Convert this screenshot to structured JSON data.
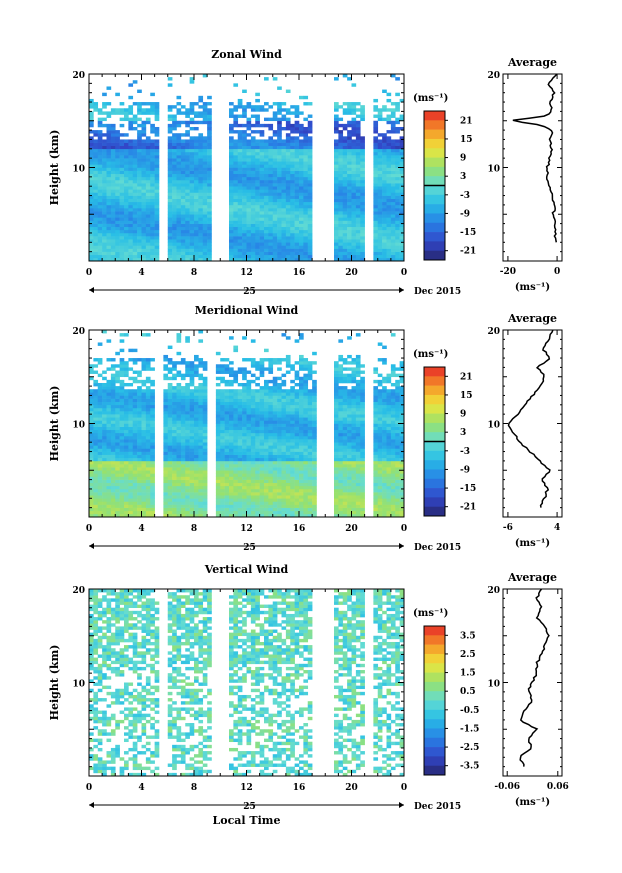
{
  "chart_data": [
    {
      "type": "heatmap",
      "title": "Zonal Wind",
      "ylabel": "Height (km)",
      "ylim": [
        0,
        20
      ],
      "yticks": [
        "20",
        "10"
      ],
      "xlim": [
        0,
        24
      ],
      "xticks": [
        "0",
        "4",
        "8",
        "12",
        "16",
        "20",
        "0"
      ],
      "date_label": "25",
      "month_label": "Dec 2015",
      "colorbar": {
        "unit": "(ms⁻¹)",
        "labels": [
          "21",
          "15",
          "9",
          "3",
          "-3",
          "-9",
          "-15",
          "-21"
        ],
        "range": [
          -24,
          24
        ],
        "contour_at": 0
      },
      "data_gaps_local_time": [
        [
          5.5,
          6.0
        ],
        [
          9.5,
          10.5
        ],
        [
          17.0,
          18.5
        ],
        [
          21.0,
          21.5
        ]
      ],
      "profile": {
        "title": "Average",
        "xticks": [
          "-20",
          "0"
        ],
        "xlim": [
          -22,
          2
        ],
        "unit": "(ms⁻¹)",
        "yticks": [
          "20",
          "10"
        ],
        "height_km": [
          2,
          3,
          4,
          5,
          6,
          7,
          8,
          9,
          10,
          11,
          12,
          13,
          14,
          14.5,
          15,
          15.5,
          16,
          17,
          18,
          19,
          20
        ],
        "values": [
          0,
          -1,
          -0.5,
          -1.5,
          -1,
          -2,
          -3,
          -4,
          -4,
          -3,
          -2,
          -3,
          -2,
          -6,
          -19,
          -5,
          -2,
          -3,
          -1,
          -4,
          0
        ]
      }
    },
    {
      "type": "heatmap",
      "title": "Meridional Wind",
      "ylabel": "Height (km)",
      "ylim": [
        0,
        20
      ],
      "yticks": [
        "20",
        "10"
      ],
      "xlim": [
        0,
        24
      ],
      "xticks": [
        "0",
        "4",
        "8",
        "12",
        "16",
        "20",
        "0"
      ],
      "date_label": "25",
      "month_label": "Dec 2015",
      "colorbar": {
        "unit": "(ms⁻¹)",
        "labels": [
          "21",
          "15",
          "9",
          "3",
          "-3",
          "-9",
          "-15",
          "-21"
        ],
        "range": [
          -24,
          24
        ],
        "contour_at": 0
      },
      "data_gaps_local_time": [
        [
          5.0,
          5.5
        ],
        [
          9.0,
          9.5
        ],
        [
          17.5,
          18.5
        ],
        [
          21.0,
          21.5
        ]
      ],
      "profile": {
        "title": "Average",
        "xticks": [
          "-6",
          "4"
        ],
        "xlim": [
          -7,
          5
        ],
        "unit": "(ms⁻¹)",
        "yticks": [
          "20",
          "10"
        ],
        "height_km": [
          1,
          2,
          3,
          4,
          5,
          6,
          7,
          8,
          9,
          10,
          11,
          12,
          13,
          14,
          15,
          16,
          17,
          18,
          19,
          20
        ],
        "values": [
          0.5,
          1.5,
          2.0,
          1.0,
          2.5,
          0.5,
          -1.5,
          -3.5,
          -5.0,
          -6.0,
          -4.0,
          -2.5,
          -1.0,
          0.5,
          1.5,
          0,
          2.5,
          1.0,
          2.5,
          3.0
        ]
      }
    },
    {
      "type": "heatmap",
      "title": "Vertical Wind",
      "ylabel": "Height (km)",
      "ylim": [
        0,
        20
      ],
      "yticks": [
        "20",
        "10"
      ],
      "xlim": [
        0,
        24
      ],
      "xticks": [
        "0",
        "4",
        "8",
        "12",
        "16",
        "20",
        "0"
      ],
      "date_label": "25",
      "month_label": "Dec 2015",
      "xlabel": "Local Time",
      "colorbar": {
        "unit": "(ms⁻¹)",
        "labels": [
          "3.5",
          "2.5",
          "1.5",
          "0.5",
          "-0.5",
          "-1.5",
          "-2.5",
          "-3.5"
        ],
        "range": [
          -4,
          4
        ]
      },
      "data_gaps_local_time": [
        [
          5.5,
          6.0
        ],
        [
          9.5,
          10.5
        ],
        [
          17.0,
          18.5
        ],
        [
          21.0,
          21.5
        ]
      ],
      "profile": {
        "title": "Average",
        "xticks": [
          "-0.06",
          "0.06"
        ],
        "xlim": [
          -0.07,
          0.07
        ],
        "unit": "(ms⁻¹)",
        "yticks": [
          "20",
          "10"
        ],
        "height_km": [
          1,
          2,
          3,
          4,
          5,
          6,
          7,
          8,
          9,
          10,
          11,
          12,
          13,
          14,
          15,
          16,
          17,
          18,
          19,
          20
        ],
        "values": [
          -0.02,
          -0.03,
          0.0,
          -0.01,
          0.01,
          -0.03,
          -0.02,
          0.0,
          -0.01,
          0.0,
          0.01,
          0.01,
          0.02,
          0.03,
          0.04,
          0.03,
          0.01,
          0.02,
          0.01,
          0.02
        ]
      }
    }
  ]
}
